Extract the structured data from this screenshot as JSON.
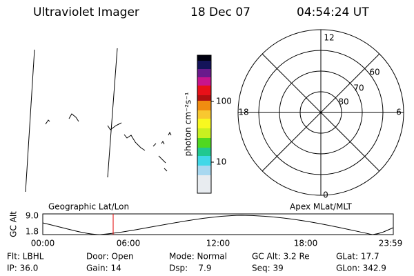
{
  "header": {
    "title": "Ultraviolet Imager",
    "date": "18 Dec 07",
    "time": "04:54:24 UT"
  },
  "colorbar": {
    "label": "photon cm⁻²s⁻¹",
    "ticks": [
      "100",
      "10"
    ]
  },
  "polar": {
    "mlt_labels": [
      "12",
      "6",
      "18",
      "0"
    ],
    "lat_labels": [
      "60",
      "70",
      "80"
    ]
  },
  "altitude_strip": {
    "left_label": "Geographic Lat/Lon",
    "right_label": "Apex MLat/MLT",
    "axis_label": "GC Alt",
    "yticks": [
      "9.0",
      "1.8"
    ],
    "xticks": [
      "00:00",
      "06:00",
      "12:00",
      "18:00",
      "23:59"
    ]
  },
  "footer": {
    "rows": [
      [
        "Flt: LBHL",
        "Door: Open",
        "Mode: Normal",
        "GC Alt: 3.2 Re",
        "GLat: 17.7"
      ],
      [
        "IP: 36.0",
        "Gain: 14",
        "Dsp:    7.9",
        "Seq: 39",
        "GLon: 342.9"
      ]
    ]
  }
}
